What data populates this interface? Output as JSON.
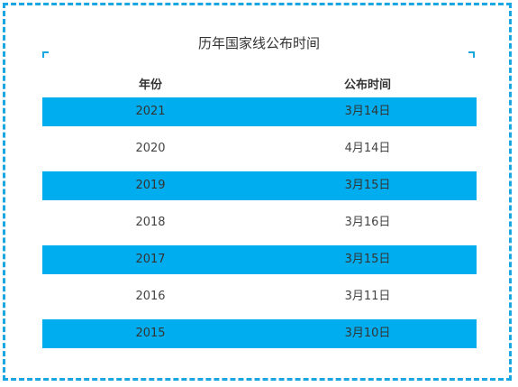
{
  "title": "历年国家线公布时间",
  "table": {
    "headers": [
      "年份",
      "公布时间"
    ],
    "rows": [
      {
        "year": "2021",
        "date": "3月14日"
      },
      {
        "year": "2020",
        "date": "4月14日"
      },
      {
        "year": "2019",
        "date": "3月15日"
      },
      {
        "year": "2018",
        "date": "3月16日"
      },
      {
        "year": "2017",
        "date": "3月15日"
      },
      {
        "year": "2016",
        "date": "3月11日"
      },
      {
        "year": "2015",
        "date": "3月10日"
      }
    ]
  },
  "colors": {
    "accent": "#1aa6e0",
    "stripe": "#00aeef"
  }
}
